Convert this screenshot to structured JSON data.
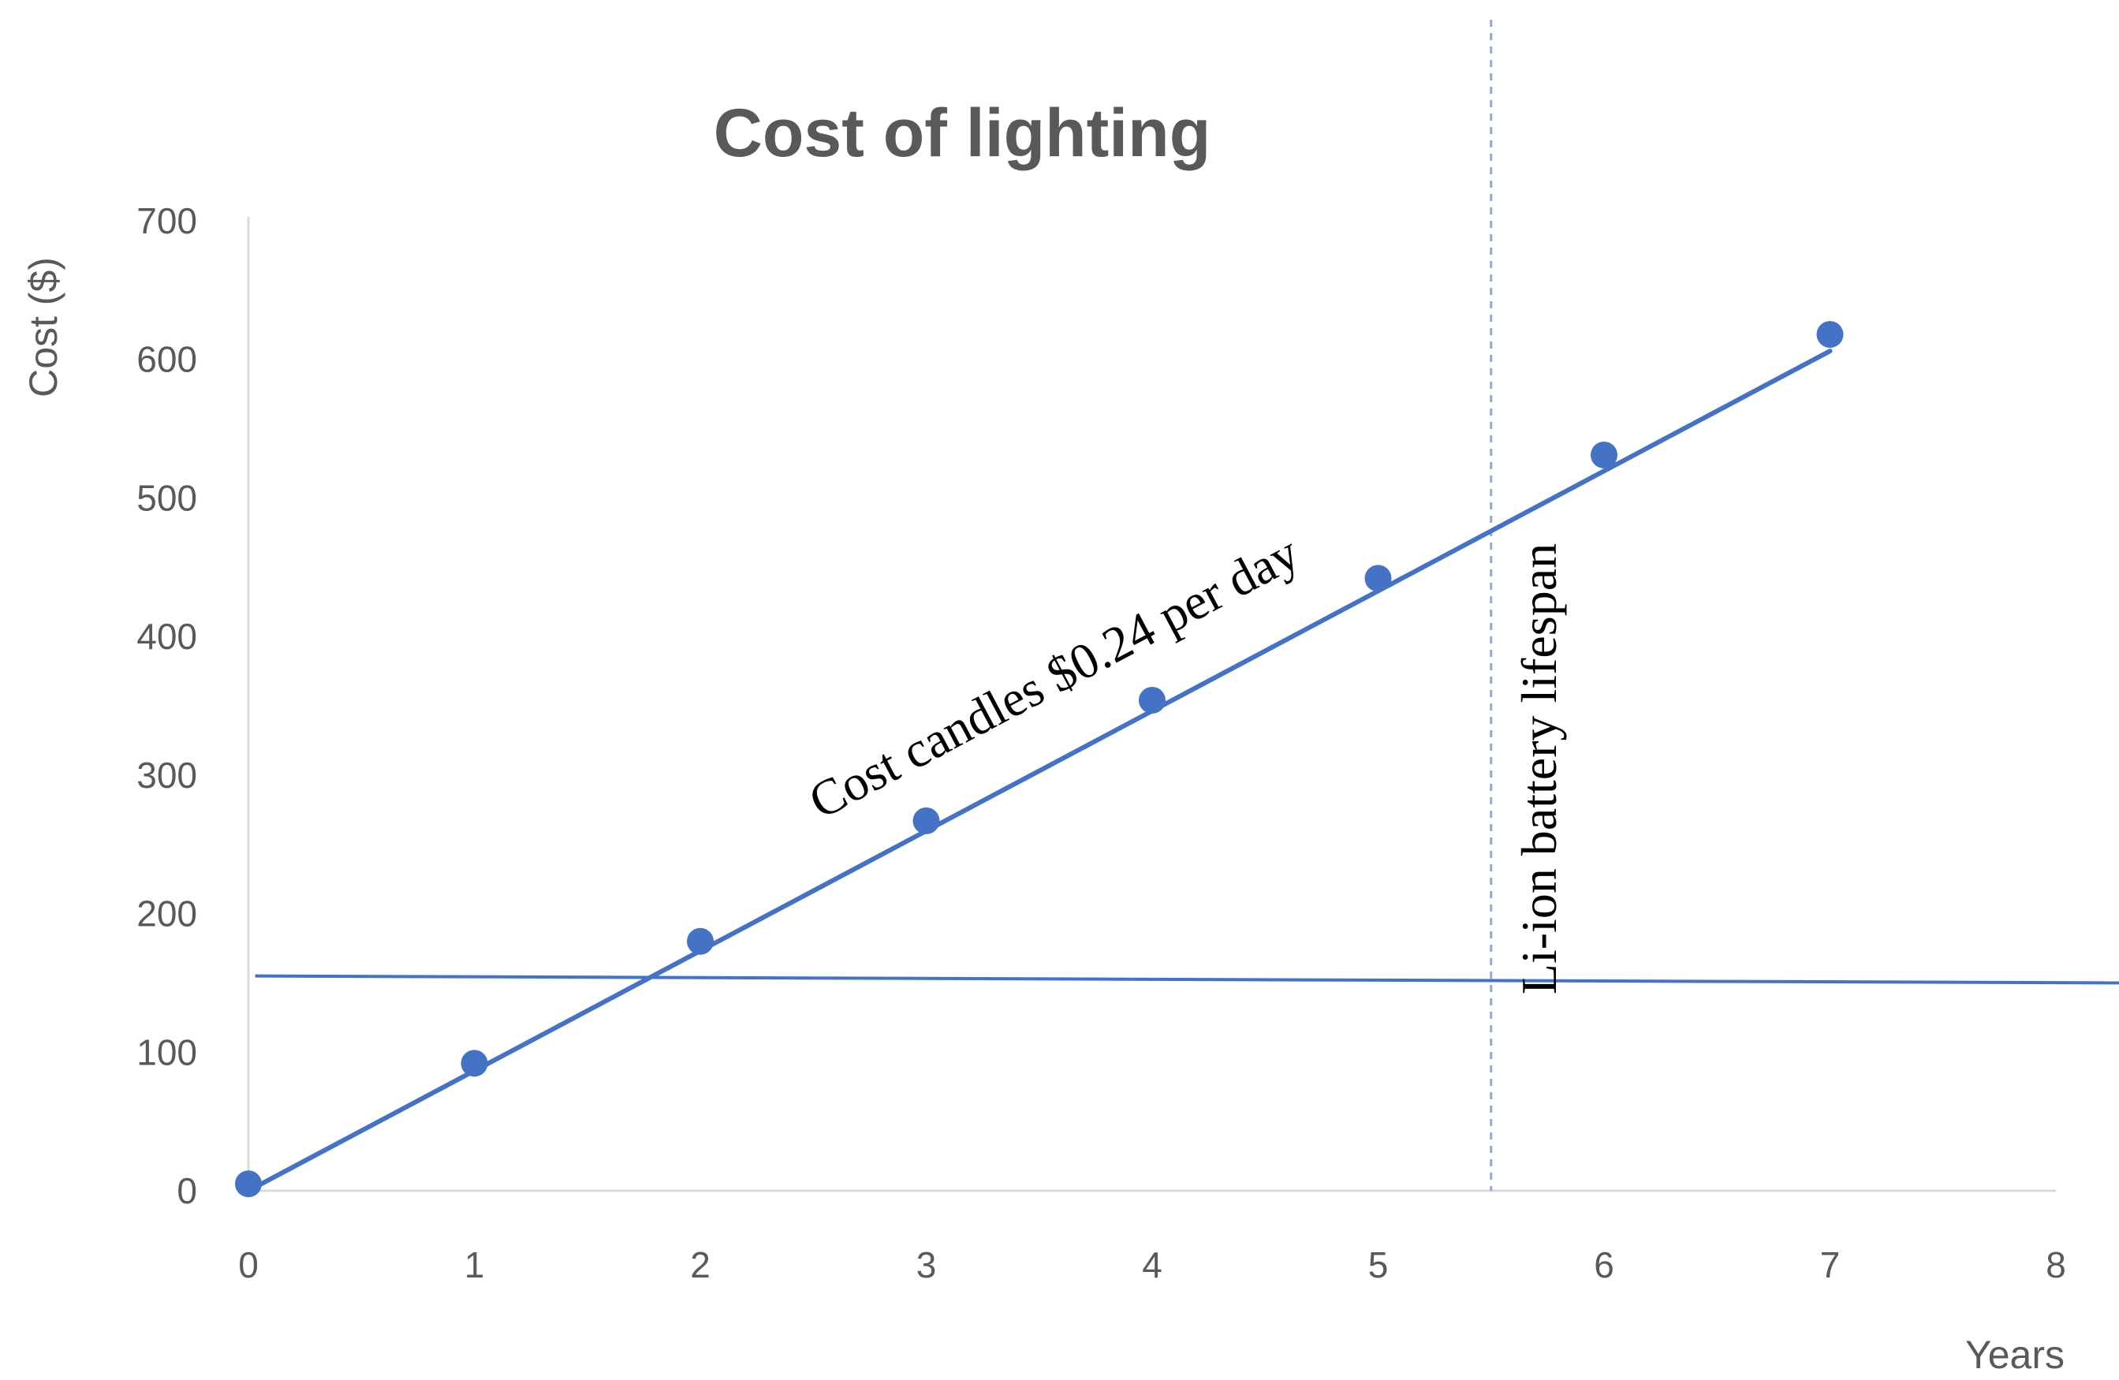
{
  "chart_data": {
    "type": "scatter",
    "title": "Cost of lighting",
    "xlabel": "Years",
    "ylabel": "Cost ($)",
    "xlim": [
      0,
      8
    ],
    "ylim": [
      0,
      700
    ],
    "x_ticks": [
      "0",
      "1",
      "2",
      "3",
      "4",
      "5",
      "6",
      "7",
      "8"
    ],
    "y_ticks": [
      "0",
      "100",
      "200",
      "300",
      "400",
      "500",
      "600",
      "700"
    ],
    "grid": false,
    "legend": "none",
    "series": [
      {
        "x": [
          0,
          1,
          2,
          3,
          4,
          5,
          6,
          7
        ],
        "y": [
          5,
          92,
          180,
          267,
          354,
          442,
          531,
          618
        ],
        "trendline": {
          "x": [
            0,
            7
          ],
          "y": [
            0,
            606
          ]
        }
      }
    ],
    "reference_lines": [
      {
        "orientation": "horizontal",
        "y_start": 155,
        "y_end": 150,
        "x_start": 0.03,
        "x_end": 8.3
      },
      {
        "orientation": "vertical",
        "x": 5.5,
        "style": "dashed"
      }
    ],
    "annotations": {
      "slope_label": "Cost candles $0.24 per day",
      "vline_label": "Li-ion battery lifespan"
    },
    "colors": {
      "series": "#4472c4",
      "axis": "#d9d9d9",
      "text": "#595959",
      "vline": "#8fa9dc"
    }
  }
}
